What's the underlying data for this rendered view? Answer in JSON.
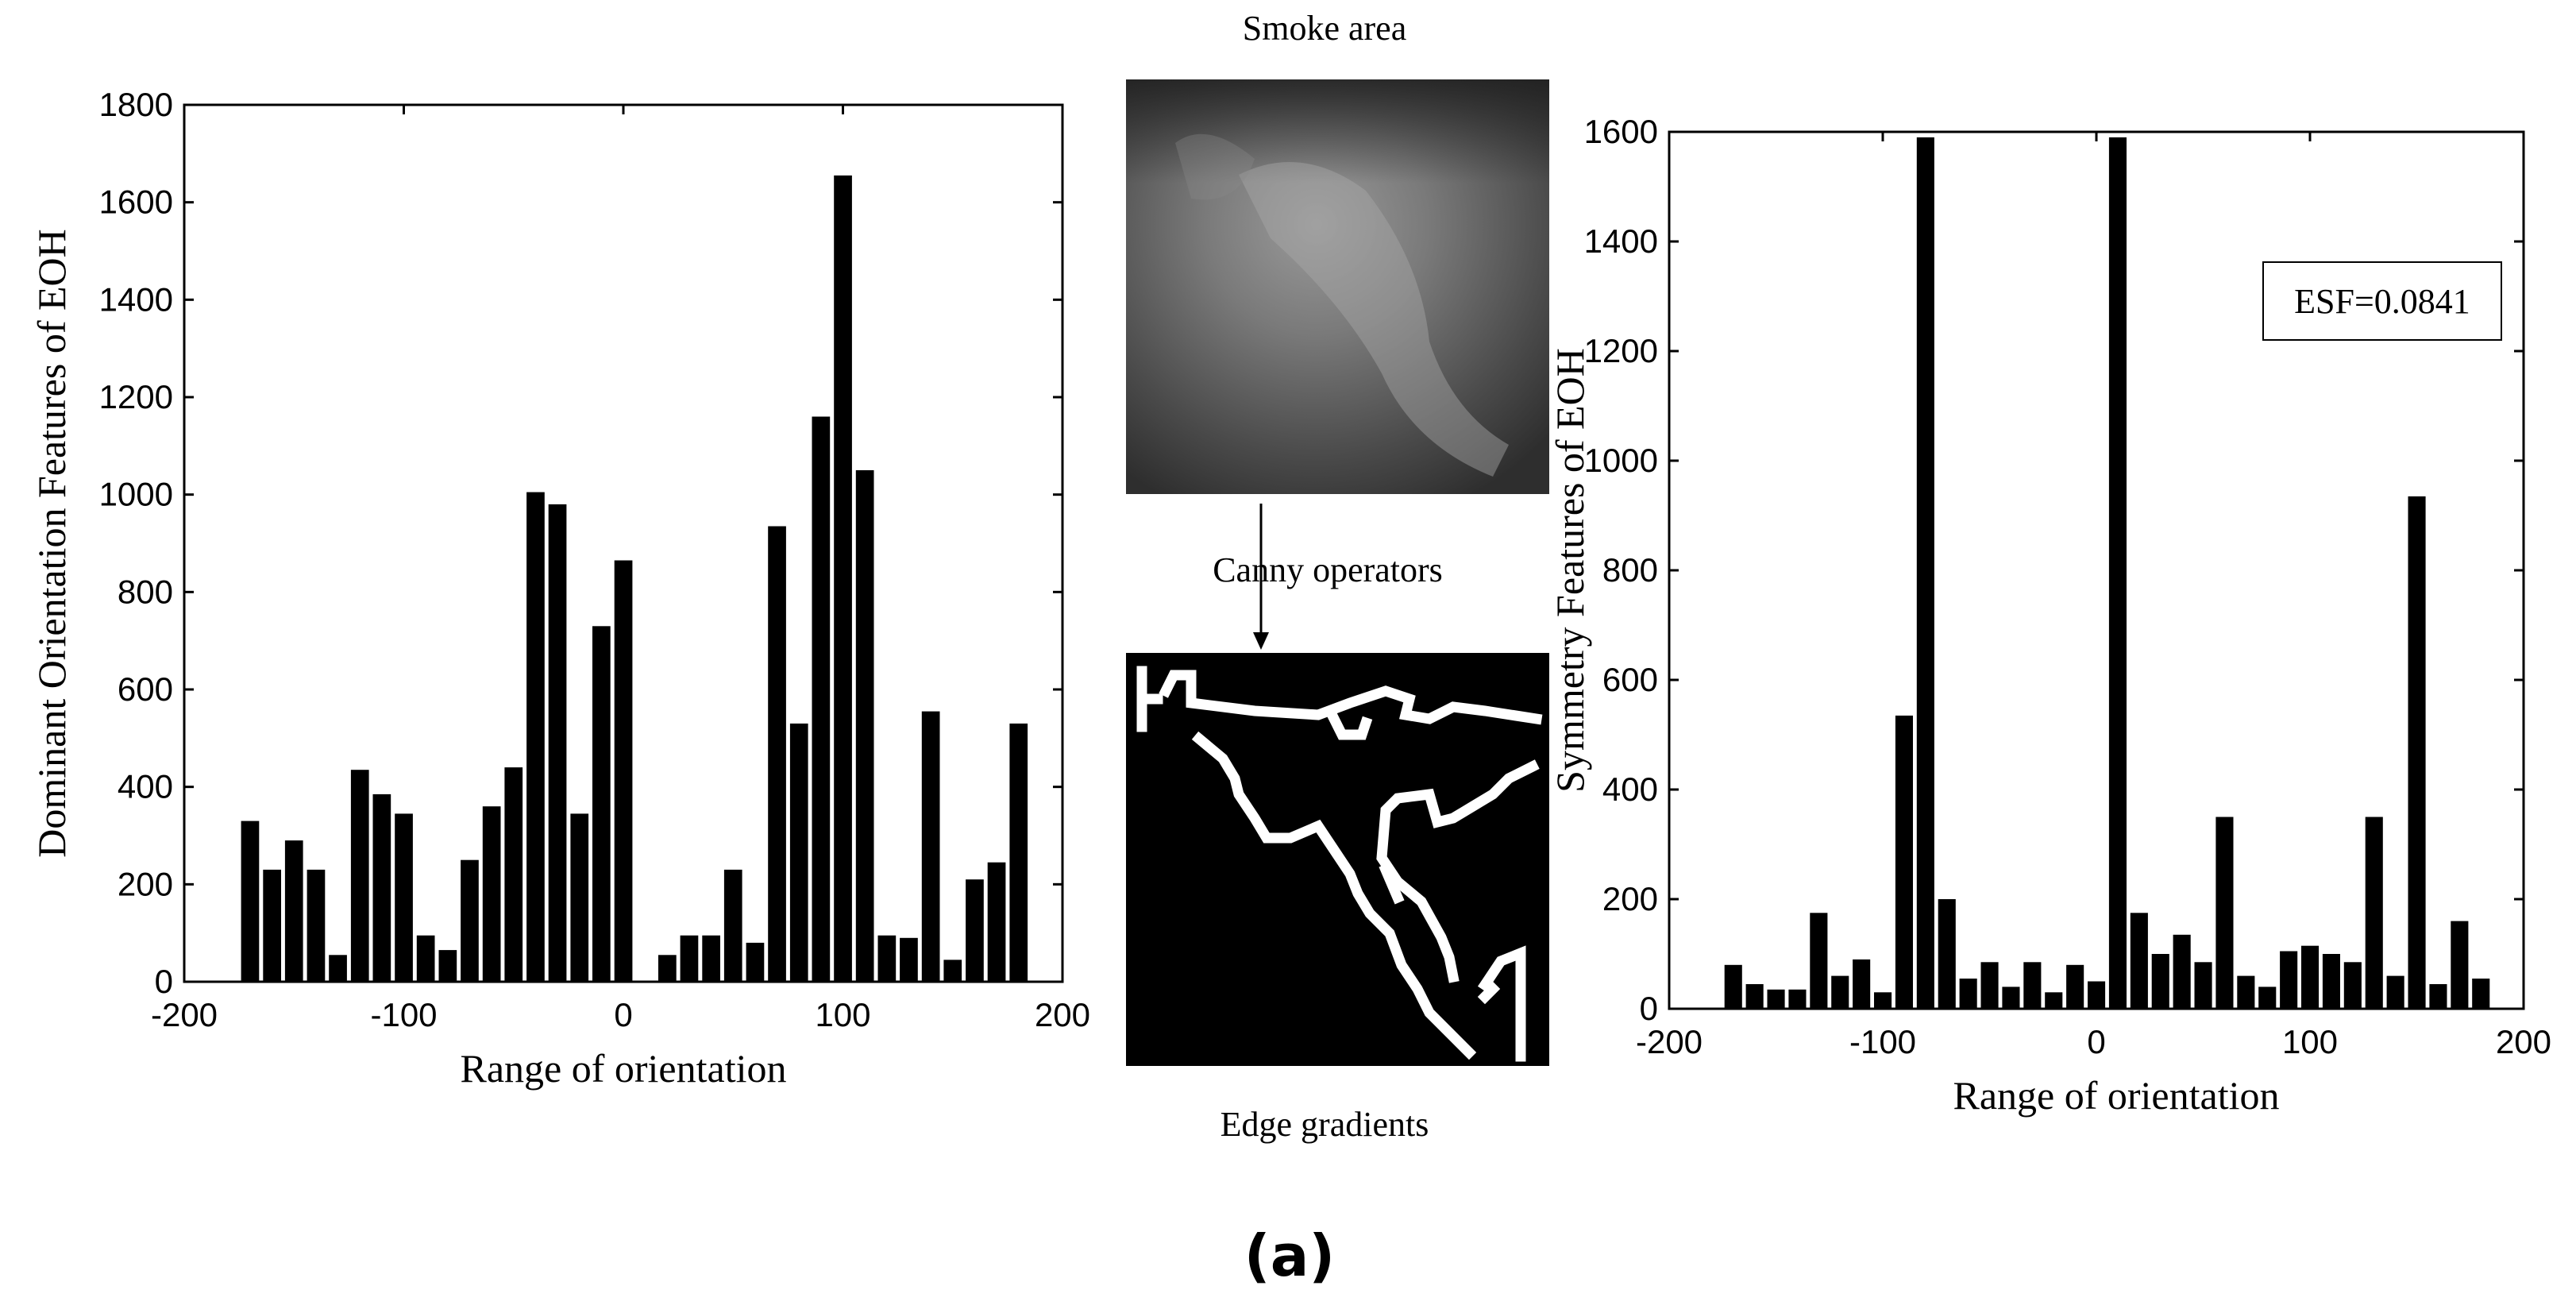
{
  "figure": {
    "panel_label": "(a)",
    "smoke_caption": "Smoke area",
    "operator_caption": "Canny operators",
    "edge_caption": "Edge gradients"
  },
  "chart_data": [
    {
      "type": "bar",
      "title": "",
      "xlabel": "Range of orientation",
      "ylabel": "Dominant Orientation Features of EOH",
      "xlim": [
        -200,
        200
      ],
      "ylim": [
        0,
        1800
      ],
      "xticks": [
        -200,
        -100,
        0,
        100,
        200
      ],
      "yticks": [
        0,
        200,
        400,
        600,
        800,
        1000,
        1200,
        1400,
        1600,
        1800
      ],
      "x": [
        -170,
        -160,
        -150,
        -140,
        -130,
        -120,
        -110,
        -100,
        -90,
        -80,
        -70,
        -60,
        -50,
        -40,
        -30,
        -20,
        -10,
        0,
        10,
        20,
        30,
        40,
        50,
        60,
        70,
        80,
        90,
        100,
        110,
        120,
        130,
        140,
        150,
        160,
        170,
        180
      ],
      "values": [
        330,
        230,
        290,
        230,
        55,
        435,
        385,
        345,
        95,
        65,
        250,
        360,
        440,
        1005,
        980,
        345,
        730,
        865,
        0,
        55,
        95,
        95,
        230,
        80,
        935,
        530,
        1160,
        1655,
        1050,
        95,
        90,
        555,
        45,
        210,
        245,
        530
      ]
    },
    {
      "type": "bar",
      "title": "",
      "xlabel": "Range of orientation",
      "ylabel": "Symmetry Features of EOH",
      "xlim": [
        -200,
        200
      ],
      "ylim": [
        0,
        1600
      ],
      "xticks": [
        -200,
        -100,
        0,
        100,
        200
      ],
      "yticks": [
        0,
        200,
        400,
        600,
        800,
        1000,
        1200,
        1400,
        1600
      ],
      "annotation": "ESF=0.0841",
      "x": [
        -170,
        -160,
        -150,
        -140,
        -130,
        -120,
        -110,
        -100,
        -90,
        -80,
        -70,
        -60,
        -50,
        -40,
        -30,
        -20,
        -10,
        0,
        10,
        20,
        30,
        40,
        50,
        60,
        70,
        80,
        90,
        100,
        110,
        120,
        130,
        140,
        150,
        160,
        170,
        180
      ],
      "values": [
        80,
        45,
        35,
        35,
        175,
        60,
        90,
        30,
        535,
        1590,
        200,
        55,
        85,
        40,
        85,
        30,
        80,
        50,
        1590,
        175,
        100,
        135,
        85,
        350,
        60,
        40,
        105,
        115,
        100,
        85,
        350,
        60,
        935,
        45,
        160,
        55
      ]
    }
  ]
}
